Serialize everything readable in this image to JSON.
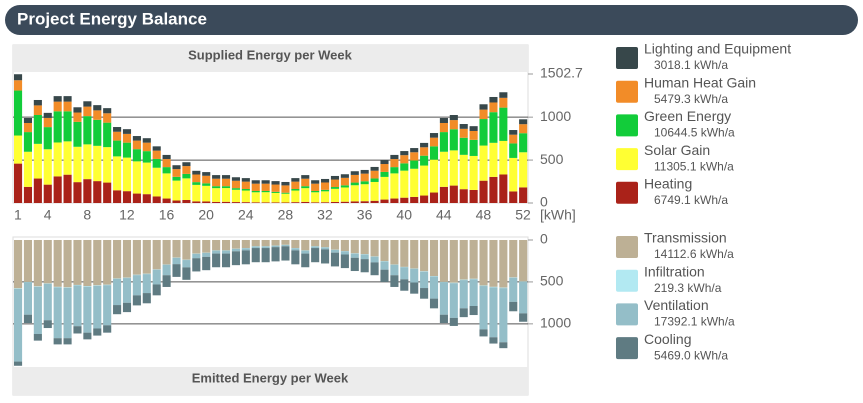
{
  "header": {
    "title": "Project Energy Balance"
  },
  "chart_data": [
    {
      "type": "bar",
      "stacked": true,
      "title": "Supplied Energy per Week",
      "y_label": "[kWh]",
      "categories": [
        1,
        null,
        null,
        4,
        null,
        null,
        null,
        8,
        null,
        null,
        null,
        12,
        null,
        null,
        null,
        16,
        null,
        null,
        null,
        20,
        null,
        null,
        null,
        24,
        null,
        null,
        null,
        28,
        null,
        null,
        null,
        32,
        null,
        null,
        null,
        36,
        null,
        null,
        null,
        40,
        null,
        null,
        null,
        44,
        null,
        null,
        null,
        48,
        null,
        null,
        null,
        52
      ],
      "ylim": [
        0,
        1502.7
      ],
      "yticks": [
        0,
        500,
        1000,
        1502.7
      ],
      "grid": true,
      "series": [
        {
          "name": "Lighting and Equipment",
          "color": "#37474a",
          "total": {
            "value": 3018.1,
            "label": "3018.1 kWh/a"
          },
          "values": [
            70,
            58,
            63,
            59,
            64,
            64,
            61,
            62,
            61,
            60,
            55,
            55,
            53,
            52,
            50,
            48,
            45,
            45,
            43,
            43,
            42,
            42,
            41,
            41,
            40,
            40,
            40,
            40,
            41,
            42,
            40,
            41,
            42,
            42,
            43,
            43,
            44,
            46,
            48,
            48,
            49,
            51,
            54,
            58,
            59,
            56,
            56,
            62,
            64,
            65,
            54,
            57
          ]
        },
        {
          "name": "Human Heat Gain",
          "color": "#f28c28",
          "total": {
            "value": 5479.3,
            "label": "5479.3 kWh/a"
          },
          "values": [
            120,
            106,
            112,
            107,
            113,
            113,
            109,
            111,
            110,
            109,
            103,
            102,
            100,
            99,
            97,
            94,
            90,
            91,
            89,
            88,
            87,
            87,
            86,
            86,
            85,
            85,
            85,
            85,
            86,
            87,
            85,
            86,
            87,
            87,
            89,
            89,
            90,
            92,
            94,
            95,
            96,
            98,
            101,
            106,
            107,
            104,
            103,
            110,
            113,
            114,
            102,
            105
          ]
        },
        {
          "name": "Green Energy",
          "color": "#12cc3a",
          "total": {
            "value": 10644.5,
            "label": "10644.5 kWh/a"
          },
          "values": [
            524,
            229,
            336,
            258,
            363,
            350,
            290,
            329,
            303,
            285,
            184,
            174,
            142,
            133,
            102,
            73,
            44,
            52,
            32,
            29,
            23,
            22,
            19,
            18,
            15,
            14,
            13,
            12,
            18,
            23,
            15,
            17,
            21,
            25,
            31,
            34,
            41,
            58,
            73,
            85,
            96,
            115,
            155,
            229,
            246,
            199,
            188,
            309,
            357,
            388,
            169,
            222
          ]
        },
        {
          "name": "Solar Gain",
          "color": "#ffff33",
          "total": {
            "value": 11305.1,
            "label": "11305.1 kWh/a"
          },
          "values": [
            327,
            409,
            404,
            412,
            395,
            388,
            412,
            405,
            411,
            413,
            395,
            391,
            375,
            368,
            335,
            293,
            232,
            252,
            192,
            182,
            160,
            160,
            143,
            135,
            117,
            119,
            110,
            102,
            135,
            160,
            117,
            127,
            153,
            166,
            188,
            198,
            219,
            264,
            293,
            315,
            328,
            349,
            383,
            409,
            410,
            400,
            396,
            409,
            397,
            391,
            390,
            409
          ]
        },
        {
          "name": "Heating",
          "color": "#aa2219",
          "total": {
            "value": 6749.1,
            "label": "6749.1 kWh/a"
          },
          "values": [
            459,
            188,
            285,
            214,
            310,
            330,
            243,
            278,
            255,
            238,
            148,
            138,
            110,
            103,
            76,
            52,
            29,
            35,
            19,
            18,
            13,
            14,
            11,
            10,
            8,
            7,
            7,
            6,
            10,
            13,
            8,
            9,
            12,
            15,
            19,
            21,
            26,
            40,
            52,
            62,
            71,
            87,
            122,
            188,
            203,
            161,
            152,
            260,
            304,
            332,
            135,
            182
          ]
        }
      ]
    },
    {
      "type": "bar",
      "stacked": true,
      "inverted": true,
      "title": "Emitted Energy per Week",
      "ylim": [
        0,
        1502.7
      ],
      "yticks": [
        0,
        500,
        1000
      ],
      "grid": true,
      "series": [
        {
          "name": "Transmission",
          "color": "#bdb095",
          "total": {
            "value": 14112.6,
            "label": "14112.6 kWh/a"
          },
          "values": [
            577,
            500,
            553,
            518,
            559,
            565,
            536,
            550,
            541,
            534,
            460,
            450,
            415,
            403,
            351,
            292,
            211,
            236,
            163,
            152,
            124,
            124,
            104,
            96,
            75,
            75,
            66,
            58,
            96,
            124,
            75,
            87,
            116,
            132,
            159,
            170,
            196,
            253,
            292,
            321,
            340,
            373,
            431,
            500,
            510,
            473,
            463,
            543,
            559,
            568,
            446,
            494
          ]
        },
        {
          "name": "Infiltration",
          "color": "#b2e9f2",
          "total": {
            "value": 219.3,
            "label": "219.3 kWh/a"
          },
          "values": [
            7,
            5,
            6,
            5,
            6,
            6,
            5,
            6,
            6,
            5,
            5,
            4,
            4,
            4,
            4,
            3,
            3,
            3,
            3,
            2,
            2,
            2,
            2,
            2,
            2,
            2,
            2,
            2,
            2,
            2,
            2,
            2,
            2,
            2,
            3,
            3,
            3,
            3,
            3,
            3,
            4,
            4,
            4,
            5,
            5,
            5,
            5,
            6,
            6,
            6,
            4,
            5
          ]
        },
        {
          "name": "Ventilation",
          "color": "#94bec8",
          "total": {
            "value": 17392.1,
            "label": "17392.1 kWh/a"
          },
          "values": [
            866,
            386,
            562,
            434,
            606,
            600,
            487,
            549,
            508,
            478,
            311,
            295,
            241,
            226,
            175,
            125,
            74,
            88,
            51,
            47,
            36,
            36,
            29,
            26,
            19,
            19,
            17,
            15,
            26,
            36,
            19,
            23,
            33,
            39,
            50,
            55,
            68,
            98,
            125,
            145,
            163,
            196,
            264,
            386,
            414,
            337,
            319,
            517,
            595,
            646,
            288,
            376
          ]
        },
        {
          "name": "Cooling",
          "color": "#5f7b82",
          "total": {
            "value": 5469.0,
            "label": "5469.0 kWh/a"
          },
          "values": [
            50,
            99,
            79,
            93,
            74,
            74,
            87,
            80,
            85,
            88,
            109,
            111,
            120,
            122,
            130,
            140,
            152,
            148,
            158,
            159,
            163,
            163,
            165,
            166,
            169,
            169,
            170,
            170,
            166,
            163,
            169,
            168,
            164,
            162,
            158,
            157,
            153,
            146,
            140,
            136,
            133,
            127,
            116,
            99,
            96,
            105,
            108,
            84,
            75,
            70,
            112,
            100
          ]
        }
      ]
    }
  ]
}
